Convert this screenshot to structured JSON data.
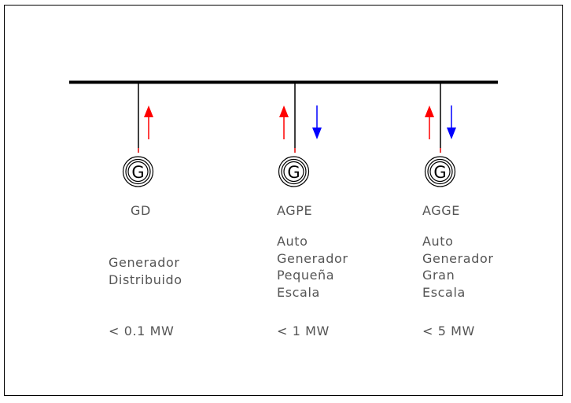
{
  "diagram": {
    "busbar_color": "#000000",
    "arrow_up_color": "#ff0000",
    "arrow_down_color": "#0000ff",
    "generator_symbol": "G",
    "units": [
      {
        "abbr": "GD",
        "description": [
          "Generador",
          "Distribuido"
        ],
        "capacity": "< 0.1 MW",
        "arrows": [
          "up"
        ]
      },
      {
        "abbr": "AGPE",
        "description": [
          "Auto",
          "Generador",
          "Pequeña",
          "Escala"
        ],
        "capacity": "< 1 MW",
        "arrows": [
          "up",
          "down"
        ]
      },
      {
        "abbr": "AGGE",
        "description": [
          "Auto",
          "Generador",
          "Gran",
          "Escala"
        ],
        "capacity": "< 5 MW",
        "arrows": [
          "up",
          "down"
        ]
      }
    ]
  }
}
